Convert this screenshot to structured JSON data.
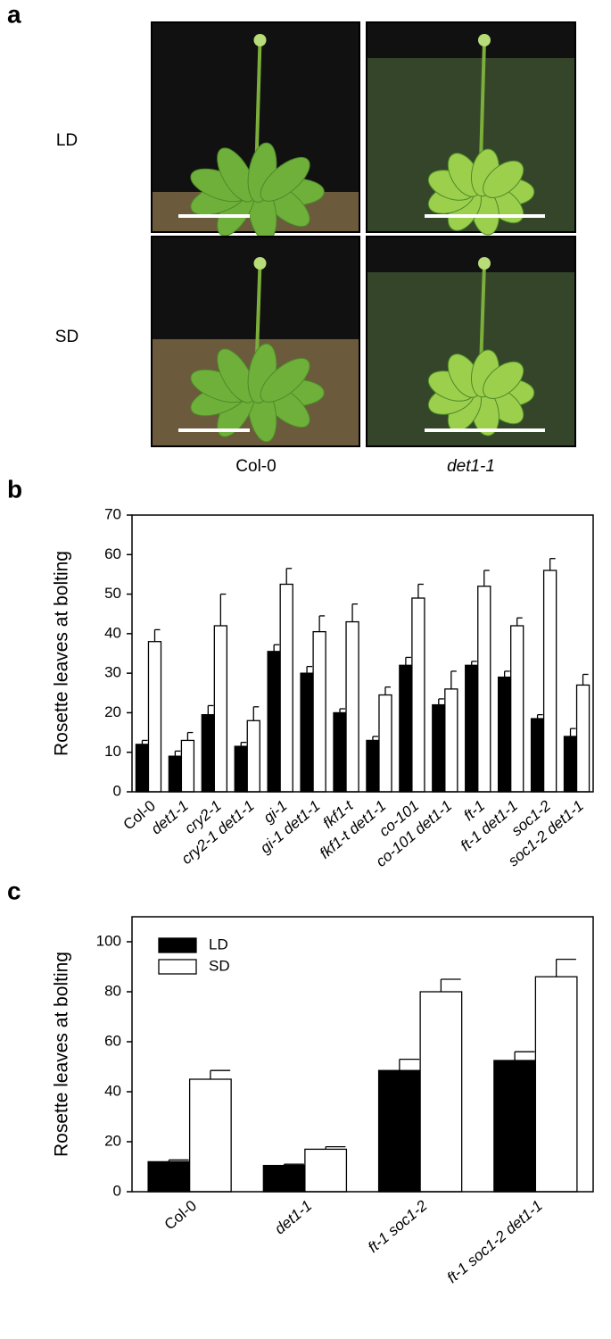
{
  "panel_a": {
    "label": "a",
    "rows": [
      "LD",
      "SD"
    ],
    "columns": [
      "Col-0",
      "det1-1"
    ]
  },
  "chart_data": [
    {
      "type": "bar",
      "panel_label": "b",
      "ylabel": "Rosette leaves at bolting",
      "categories": [
        "Col-0",
        "det1-1",
        "cry2-1",
        "cry2-1 det1-1",
        "gi-1",
        "gi-1 det1-1",
        "fkf1-t",
        "fkf1-t det1-1",
        "co-101",
        "co-101 det1-1",
        "ft-1",
        "ft-1 det1-1",
        "soc1-2",
        "soc1-2 det1-1"
      ],
      "series": [
        {
          "color": "#000000",
          "values": [
            12,
            9,
            19.5,
            11.5,
            35.5,
            30,
            20,
            13,
            32,
            22,
            32,
            29,
            18.5,
            14
          ],
          "errors": [
            1,
            1.3,
            2.3,
            1,
            1.7,
            1.7,
            1,
            1,
            2,
            1.5,
            1,
            1.5,
            1,
            2
          ]
        },
        {
          "color": "#ffffff",
          "values": [
            38,
            13,
            42,
            18,
            52.5,
            40.5,
            43,
            24.5,
            49,
            26,
            52,
            42,
            56,
            27
          ],
          "errors": [
            3,
            2,
            8,
            3.5,
            4,
            4,
            4.5,
            2,
            3.5,
            4.5,
            4,
            2,
            3,
            2.7
          ]
        }
      ],
      "ylim": [
        0,
        70
      ],
      "yticks": [
        0,
        10,
        20,
        30,
        40,
        50,
        60,
        70
      ]
    },
    {
      "type": "bar",
      "panel_label": "c",
      "ylabel": "Rosette leaves at bolting",
      "categories": [
        "Col-0",
        "det1-1",
        "ft-1 soc1-2",
        "ft-1 soc1-2 det1-1"
      ],
      "series": [
        {
          "name": "LD",
          "color": "#000000",
          "values": [
            12,
            10.5,
            48.5,
            52.5
          ],
          "errors": [
            0.7,
            0.5,
            4.5,
            3.5
          ]
        },
        {
          "name": "SD",
          "color": "#ffffff",
          "values": [
            45,
            17,
            80,
            86
          ],
          "errors": [
            3.5,
            1,
            5,
            7
          ]
        }
      ],
      "ylim": [
        0,
        110
      ],
      "yticks": [
        0,
        20,
        40,
        60,
        80,
        100
      ],
      "legend": "upper left"
    }
  ]
}
